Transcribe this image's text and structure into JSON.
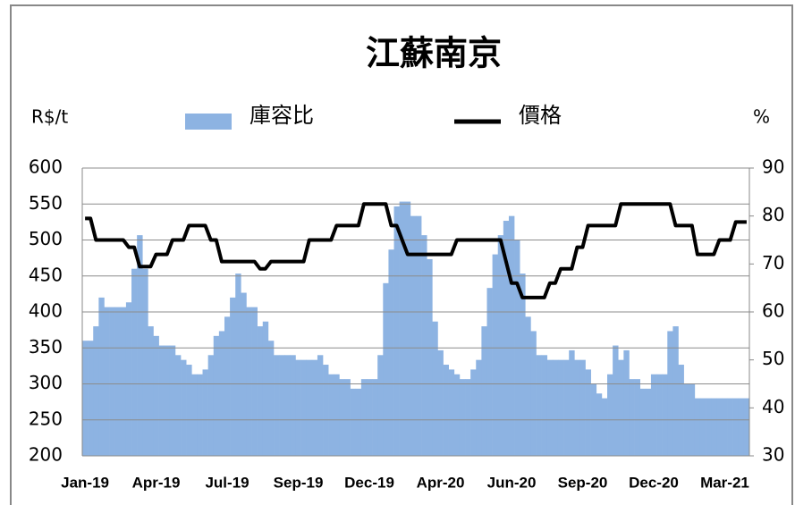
{
  "chart_data": {
    "type": "bar",
    "title": "江蘇南京",
    "ylabel": "R$/t",
    "y2label": "%",
    "categories": [
      "Jan-19",
      null,
      null,
      null,
      null,
      null,
      null,
      null,
      null,
      null,
      null,
      null,
      null,
      "Apr-19",
      null,
      null,
      null,
      null,
      null,
      null,
      null,
      null,
      null,
      null,
      null,
      null,
      "Jul-19",
      null,
      null,
      null,
      null,
      null,
      null,
      null,
      null,
      null,
      null,
      null,
      null,
      "Sep-19",
      null,
      null,
      null,
      null,
      null,
      null,
      null,
      null,
      null,
      null,
      null,
      null,
      "Dec-19",
      null,
      null,
      null,
      null,
      null,
      null,
      null,
      null,
      null,
      null,
      null,
      null,
      "Apr-20",
      null,
      null,
      null,
      null,
      null,
      null,
      null,
      null,
      null,
      null,
      null,
      null,
      "Jun-20",
      null,
      null,
      null,
      null,
      null,
      null,
      null,
      null,
      null,
      null,
      null,
      null,
      "Sep-20",
      null,
      null,
      null,
      null,
      null,
      null,
      null,
      null,
      null,
      null,
      null,
      null,
      "Dec-20",
      null,
      null,
      null,
      null,
      null,
      null,
      null,
      null,
      null,
      null,
      null,
      null,
      "Mar-21",
      null,
      null,
      null,
      null
    ],
    "series": [
      {
        "name": "庫容比",
        "type": "bar",
        "axis": "y2",
        "color": "#8db3e2",
        "values": [
          54,
          54,
          57,
          63,
          61,
          61,
          61,
          61,
          62,
          69,
          76,
          69,
          57,
          55,
          53,
          53,
          53,
          51,
          50,
          49,
          47,
          47,
          48,
          51,
          55,
          56,
          59,
          63,
          68,
          64,
          61,
          61,
          57,
          58,
          54,
          51,
          51,
          51,
          51,
          50,
          50,
          50,
          50,
          51,
          49,
          47,
          47,
          46,
          46,
          44,
          44,
          46,
          46,
          46,
          51,
          66,
          73,
          82,
          83,
          83,
          80,
          80,
          76,
          71,
          58,
          52,
          49,
          48,
          47,
          46,
          46,
          48,
          50,
          57,
          65,
          72,
          76,
          79,
          80,
          75,
          68,
          59,
          56,
          51,
          51,
          50,
          50,
          50,
          50,
          52,
          50,
          50,
          48,
          45,
          43,
          42,
          47,
          53,
          50,
          52,
          46,
          46,
          44,
          44,
          47,
          47,
          47,
          56,
          57,
          49,
          45,
          45,
          42,
          42,
          42,
          42,
          42,
          42,
          42,
          42,
          42,
          42
        ]
      },
      {
        "name": "價格",
        "type": "line",
        "color": "#000000",
        "values": [
          530,
          530,
          500,
          500,
          500,
          500,
          500,
          500,
          490,
          490,
          463,
          463,
          463,
          480,
          480,
          480,
          500,
          500,
          500,
          520,
          520,
          520,
          520,
          500,
          500,
          470,
          470,
          470,
          470,
          470,
          470,
          470,
          460,
          460,
          470,
          470,
          470,
          470,
          470,
          470,
          470,
          500,
          500,
          500,
          500,
          500,
          520,
          520,
          520,
          520,
          520,
          550,
          550,
          550,
          550,
          550,
          520,
          520,
          500,
          480,
          480,
          480,
          480,
          480,
          480,
          480,
          480,
          480,
          500,
          500,
          500,
          500,
          500,
          500,
          500,
          500,
          500,
          470,
          440,
          440,
          420,
          420,
          420,
          420,
          420,
          440,
          440,
          460,
          460,
          460,
          490,
          490,
          520,
          520,
          520,
          520,
          520,
          520,
          550,
          550,
          550,
          550,
          550,
          550,
          550,
          550,
          550,
          550,
          520,
          520,
          520,
          520,
          480,
          480,
          480,
          480,
          500,
          500,
          500,
          525,
          525,
          525
        ]
      }
    ],
    "ylim": [
      200,
      600
    ],
    "yticks": [
      200,
      250,
      300,
      350,
      400,
      450,
      500,
      550,
      600
    ],
    "y2lim": [
      30,
      90
    ],
    "y2ticks": [
      30,
      40,
      50,
      60,
      70,
      80,
      90
    ],
    "grid": true
  }
}
